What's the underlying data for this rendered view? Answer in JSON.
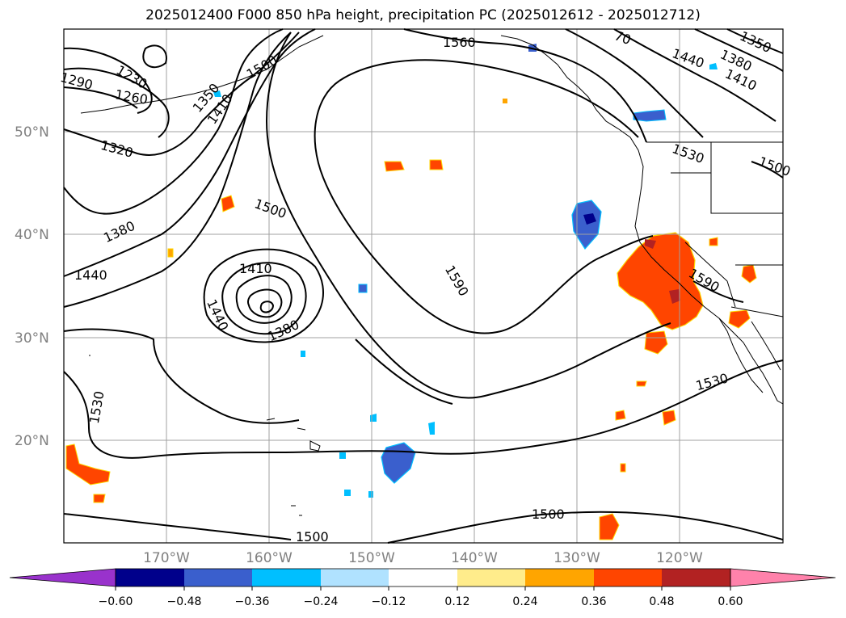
{
  "title": "2025012400 F000 850 hPa height, precipitation PC (2025012612 - 2025012712)",
  "map": {
    "lat_labels": [
      "50°N",
      "40°N",
      "30°N",
      "20°N"
    ],
    "lon_labels": [
      "170°W",
      "160°W",
      "150°W",
      "140°W",
      "130°W",
      "120°W"
    ],
    "contour_labels": [
      "1230",
      "1260",
      "1290",
      "1320",
      "1350",
      "1380",
      "1410",
      "1440",
      "1500",
      "1530",
      "1560",
      "1590",
      "1410",
      "1380",
      "1440",
      "1500",
      "1530",
      "1590",
      "1530",
      "1500",
      "1500",
      "1440",
      "1380",
      "1410",
      "1350",
      "1500"
    ],
    "land_color": "#000000",
    "grid_color": "#a0a0a0"
  },
  "colorbar": {
    "ticks": [
      "−0.60",
      "−0.48",
      "−0.36",
      "−0.24",
      "−0.12",
      "0.12",
      "0.24",
      "0.36",
      "0.48",
      "0.60"
    ],
    "colors": [
      "#9932cc",
      "#00008b",
      "#3a5fcd",
      "#00bfff",
      "#b0e2ff",
      "#ffffff",
      "#ffec8b",
      "#ffa500",
      "#ff4500",
      "#b22222",
      "#ff82ab"
    ]
  }
}
